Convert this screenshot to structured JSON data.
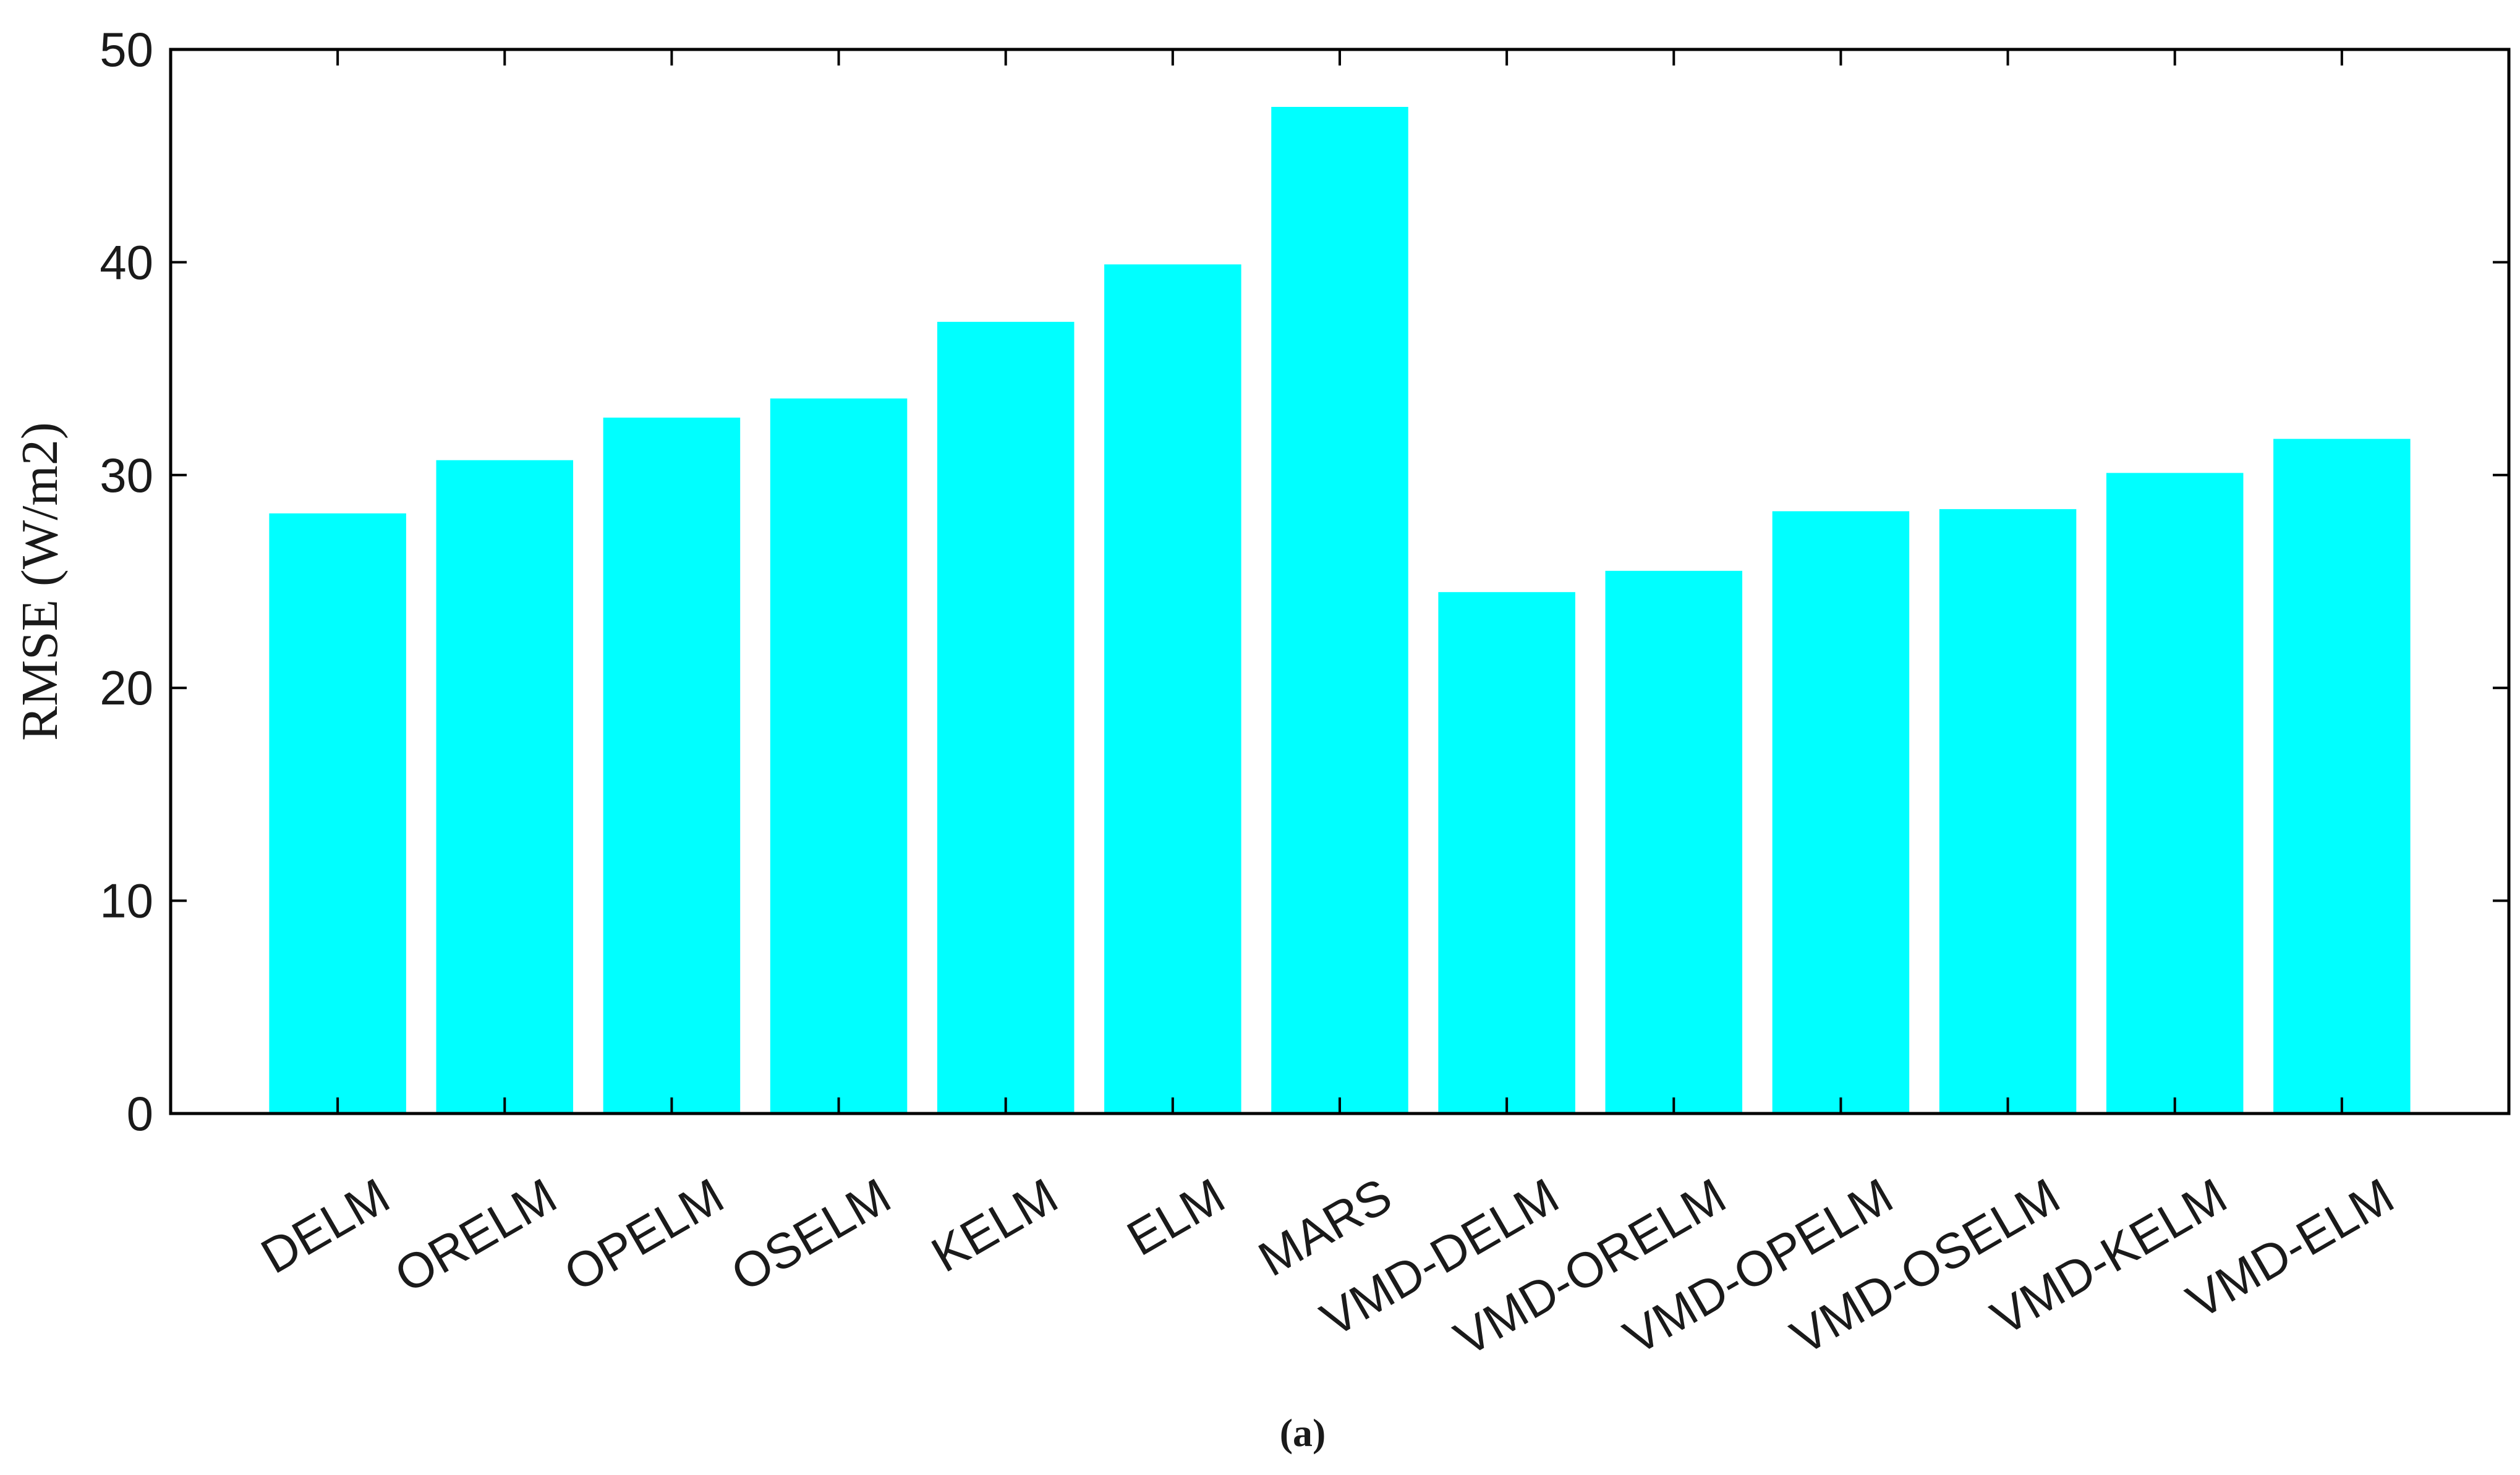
{
  "chart_data": {
    "type": "bar",
    "categories": [
      "DELM",
      "ORELM",
      "OPELM",
      "OSELM",
      "KELM",
      "ELM",
      "MARS",
      "VMD-DELM",
      "VMD-ORELM",
      "VMD-OPELM",
      "VMD-OSELM",
      "VMD-KELM",
      "VMD-ELM"
    ],
    "values": [
      28.2,
      30.7,
      32.7,
      33.6,
      37.2,
      39.9,
      47.3,
      24.5,
      25.5,
      28.3,
      28.4,
      30.1,
      31.7
    ],
    "xlabel": "",
    "ylabel": "RMSE (W/m2)",
    "ylim": [
      0,
      50
    ],
    "yticks": [
      0,
      10,
      20,
      30,
      40,
      50
    ],
    "bar_color": "#00ffff",
    "grid": false,
    "caption": "(a)"
  }
}
